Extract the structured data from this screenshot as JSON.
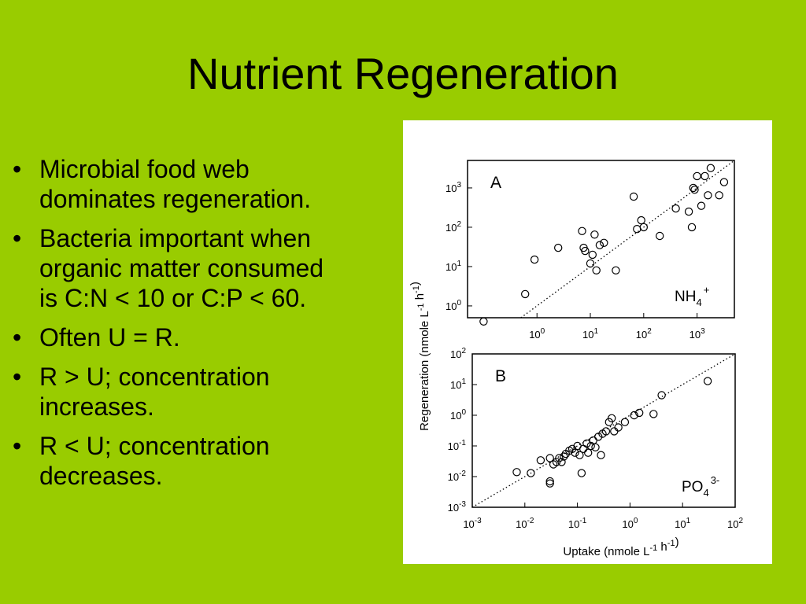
{
  "slide": {
    "title": "Nutrient Regeneration",
    "bullets": [
      {
        "lines": [
          "Microbial food web",
          "dominates regeneration."
        ]
      },
      {
        "lines": [
          "Bacteria important when",
          "organic matter consumed",
          "is C:N < 10 or C:P < 60."
        ]
      },
      {
        "lines": [
          "Often U = R."
        ]
      },
      {
        "lines": [
          "R > U; concentration",
          "increases."
        ]
      },
      {
        "lines": [
          "R < U; concentration",
          "decreases."
        ]
      }
    ]
  },
  "colors": {
    "background": "#99cc00",
    "figure_background": "#ffffff",
    "marker": "#000000"
  },
  "chart_data": [
    {
      "type": "scatter",
      "panel_label": "A",
      "annotation": {
        "base": "NH",
        "sub": "4",
        "sup": "+"
      },
      "xscale": "log",
      "yscale": "log",
      "xlim": [
        0.05,
        5000
      ],
      "ylim": [
        0.5,
        5000
      ],
      "xticks": [
        1,
        10,
        100,
        1000
      ],
      "yticks": [
        1,
        10,
        100,
        1000
      ],
      "reference_line": "1:1",
      "points": [
        {
          "x": 0.1,
          "y": 0.4
        },
        {
          "x": 0.6,
          "y": 2.0
        },
        {
          "x": 0.9,
          "y": 15
        },
        {
          "x": 2.5,
          "y": 30
        },
        {
          "x": 7,
          "y": 80
        },
        {
          "x": 7.5,
          "y": 30
        },
        {
          "x": 8,
          "y": 25
        },
        {
          "x": 10,
          "y": 12
        },
        {
          "x": 11,
          "y": 20
        },
        {
          "x": 12,
          "y": 65
        },
        {
          "x": 13,
          "y": 8
        },
        {
          "x": 15,
          "y": 35
        },
        {
          "x": 18,
          "y": 40
        },
        {
          "x": 30,
          "y": 8
        },
        {
          "x": 65,
          "y": 600
        },
        {
          "x": 75,
          "y": 90
        },
        {
          "x": 90,
          "y": 150
        },
        {
          "x": 100,
          "y": 100
        },
        {
          "x": 200,
          "y": 60
        },
        {
          "x": 400,
          "y": 300
        },
        {
          "x": 700,
          "y": 250
        },
        {
          "x": 800,
          "y": 100
        },
        {
          "x": 850,
          "y": 1000
        },
        {
          "x": 900,
          "y": 900
        },
        {
          "x": 1000,
          "y": 2000
        },
        {
          "x": 1200,
          "y": 350
        },
        {
          "x": 1400,
          "y": 2000
        },
        {
          "x": 1600,
          "y": 650
        },
        {
          "x": 1800,
          "y": 3200
        },
        {
          "x": 2600,
          "y": 650
        },
        {
          "x": 3200,
          "y": 1400
        }
      ]
    },
    {
      "type": "scatter",
      "panel_label": "B",
      "annotation": {
        "base": "PO",
        "sub": "4",
        "sup": "3-"
      },
      "xscale": "log",
      "yscale": "log",
      "xlim": [
        0.001,
        100
      ],
      "ylim": [
        0.001,
        100
      ],
      "xticks": [
        0.001,
        0.01,
        0.1,
        1,
        10,
        100
      ],
      "yticks": [
        0.001,
        0.01,
        0.1,
        1,
        10,
        100
      ],
      "xlabel": "Uptake (nmole L-1 h-1)",
      "ylabel": "Regeneration (nmole L-1 h-1)",
      "reference_line": "1:1",
      "points": [
        {
          "x": 0.007,
          "y": 0.014
        },
        {
          "x": 0.013,
          "y": 0.013
        },
        {
          "x": 0.02,
          "y": 0.034
        },
        {
          "x": 0.03,
          "y": 0.04
        },
        {
          "x": 0.03,
          "y": 0.006
        },
        {
          "x": 0.03,
          "y": 0.007
        },
        {
          "x": 0.035,
          "y": 0.025
        },
        {
          "x": 0.04,
          "y": 0.03
        },
        {
          "x": 0.045,
          "y": 0.04
        },
        {
          "x": 0.05,
          "y": 0.03
        },
        {
          "x": 0.055,
          "y": 0.045
        },
        {
          "x": 0.06,
          "y": 0.055
        },
        {
          "x": 0.07,
          "y": 0.07
        },
        {
          "x": 0.08,
          "y": 0.08
        },
        {
          "x": 0.09,
          "y": 0.06
        },
        {
          "x": 0.1,
          "y": 0.1
        },
        {
          "x": 0.11,
          "y": 0.05
        },
        {
          "x": 0.12,
          "y": 0.013
        },
        {
          "x": 0.13,
          "y": 0.08
        },
        {
          "x": 0.15,
          "y": 0.12
        },
        {
          "x": 0.16,
          "y": 0.06
        },
        {
          "x": 0.18,
          "y": 0.1
        },
        {
          "x": 0.2,
          "y": 0.15
        },
        {
          "x": 0.22,
          "y": 0.09
        },
        {
          "x": 0.25,
          "y": 0.2
        },
        {
          "x": 0.28,
          "y": 0.05
        },
        {
          "x": 0.3,
          "y": 0.25
        },
        {
          "x": 0.35,
          "y": 0.3
        },
        {
          "x": 0.4,
          "y": 0.6
        },
        {
          "x": 0.45,
          "y": 0.8
        },
        {
          "x": 0.5,
          "y": 0.3
        },
        {
          "x": 0.6,
          "y": 0.4
        },
        {
          "x": 0.8,
          "y": 0.6
        },
        {
          "x": 1.2,
          "y": 1.0
        },
        {
          "x": 1.5,
          "y": 1.2
        },
        {
          "x": 2.8,
          "y": 1.1
        },
        {
          "x": 4,
          "y": 4.5
        },
        {
          "x": 30,
          "y": 13
        }
      ]
    }
  ]
}
